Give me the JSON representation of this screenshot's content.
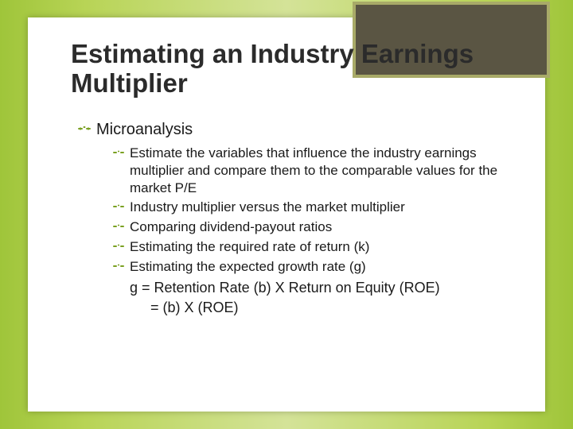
{
  "slide": {
    "title": "Estimating an Industry Earnings Multiplier",
    "heading": "Microanalysis",
    "bullets": [
      "Estimate the variables that influence the industry earnings multiplier and compare them to the comparable values for the market P/E",
      "Industry  multiplier versus the market multiplier",
      "Comparing dividend-payout ratios",
      "Estimating the required rate of return (k)",
      "Estimating the expected growth rate (g)"
    ],
    "formula": {
      "line1": "g = Retention Rate (b) X Return on Equity (ROE)",
      "line2": "= (b) X (ROE)"
    }
  },
  "style": {
    "bg_gradient_outer": "#9fc53a",
    "bg_gradient_inner": "#d4e398",
    "panel_bg": "#ffffff",
    "corner_fill": "#5a5543",
    "corner_border": "#a8aa68",
    "bullet_color": "#7aa022",
    "title_fontsize": 33,
    "lvl1_fontsize": 20,
    "lvl2_fontsize": 17,
    "formula_fontsize": 18
  }
}
